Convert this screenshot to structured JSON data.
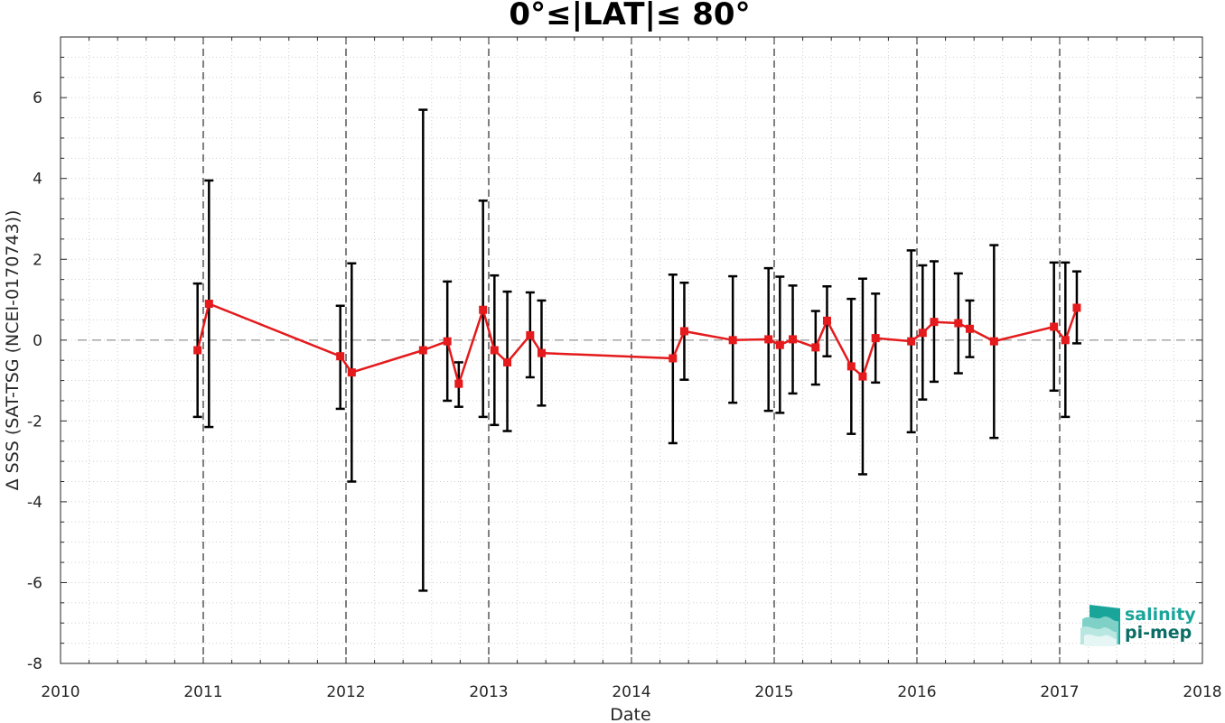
{
  "chart_data": {
    "type": "line",
    "title": "0°≤|LAT|≤ 80°",
    "xlabel": "Date",
    "ylabel": "Δ SSS (SAT-TSG (NCEI-0170743))",
    "xlim": [
      2010,
      2018
    ],
    "ylim": [
      -8,
      7.5
    ],
    "x_ticks": [
      "2010",
      "2011",
      "2012",
      "2013",
      "2014",
      "2015",
      "2016",
      "2017",
      "2018"
    ],
    "y_ticks": [
      "-8",
      "-6",
      "-4",
      "-2",
      "0",
      "2",
      "4",
      "6"
    ],
    "grid": "minor dotted",
    "reference_line": 0,
    "year_markers": [
      2011,
      2012,
      2013,
      2014,
      2015,
      2016,
      2017
    ],
    "series": [
      {
        "color": "#e41a1c",
        "marker": "square",
        "points": [
          {
            "x": 2010.96,
            "y": -0.25,
            "low": -1.9,
            "high": 1.4
          },
          {
            "x": 2011.04,
            "y": 0.9,
            "low": -2.15,
            "high": 3.95
          },
          {
            "x": 2011.96,
            "y": -0.4,
            "low": -1.7,
            "high": 0.85
          },
          {
            "x": 2012.04,
            "y": -0.8,
            "low": -3.5,
            "high": 1.9
          },
          {
            "x": 2012.54,
            "y": -0.25,
            "low": -6.2,
            "high": 5.7
          },
          {
            "x": 2012.71,
            "y": -0.03,
            "low": -1.5,
            "high": 1.45
          },
          {
            "x": 2012.79,
            "y": -1.08,
            "low": -1.65,
            "high": -0.55
          },
          {
            "x": 2012.96,
            "y": 0.75,
            "low": -1.9,
            "high": 3.45
          },
          {
            "x": 2013.04,
            "y": -0.25,
            "low": -2.1,
            "high": 1.6
          },
          {
            "x": 2013.13,
            "y": -0.55,
            "low": -2.25,
            "high": 1.2
          },
          {
            "x": 2013.29,
            "y": 0.12,
            "low": -0.92,
            "high": 1.18
          },
          {
            "x": 2013.37,
            "y": -0.32,
            "low": -1.62,
            "high": 0.98
          },
          {
            "x": 2014.29,
            "y": -0.45,
            "low": -2.55,
            "high": 1.62
          },
          {
            "x": 2014.37,
            "y": 0.22,
            "low": -0.98,
            "high": 1.42
          },
          {
            "x": 2014.71,
            "y": 0.0,
            "low": -1.55,
            "high": 1.58
          },
          {
            "x": 2014.96,
            "y": 0.02,
            "low": -1.75,
            "high": 1.78
          },
          {
            "x": 2015.04,
            "y": -0.12,
            "low": -1.8,
            "high": 1.57
          },
          {
            "x": 2015.13,
            "y": 0.02,
            "low": -1.32,
            "high": 1.35
          },
          {
            "x": 2015.29,
            "y": -0.18,
            "low": -1.1,
            "high": 0.72
          },
          {
            "x": 2015.37,
            "y": 0.48,
            "low": -0.4,
            "high": 1.33
          },
          {
            "x": 2015.54,
            "y": -0.65,
            "low": -2.32,
            "high": 1.02
          },
          {
            "x": 2015.62,
            "y": -0.9,
            "low": -3.32,
            "high": 1.52
          },
          {
            "x": 2015.71,
            "y": 0.05,
            "low": -1.05,
            "high": 1.15
          },
          {
            "x": 2015.96,
            "y": -0.03,
            "low": -2.28,
            "high": 2.22
          },
          {
            "x": 2016.04,
            "y": 0.18,
            "low": -1.47,
            "high": 1.85
          },
          {
            "x": 2016.12,
            "y": 0.45,
            "low": -1.03,
            "high": 1.95
          },
          {
            "x": 2016.29,
            "y": 0.42,
            "low": -0.82,
            "high": 1.65
          },
          {
            "x": 2016.37,
            "y": 0.28,
            "low": -0.42,
            "high": 0.98
          },
          {
            "x": 2016.54,
            "y": -0.03,
            "low": -2.42,
            "high": 2.35
          },
          {
            "x": 2016.96,
            "y": 0.33,
            "low": -1.25,
            "high": 1.92
          },
          {
            "x": 2017.04,
            "y": 0.0,
            "low": -1.9,
            "high": 1.92
          },
          {
            "x": 2017.12,
            "y": 0.8,
            "low": -0.08,
            "high": 1.7
          }
        ]
      }
    ]
  },
  "logo": {
    "line1": "salinity",
    "line2": "pi-mep",
    "color1": "#1aa59a",
    "color2": "#0b6e66"
  }
}
